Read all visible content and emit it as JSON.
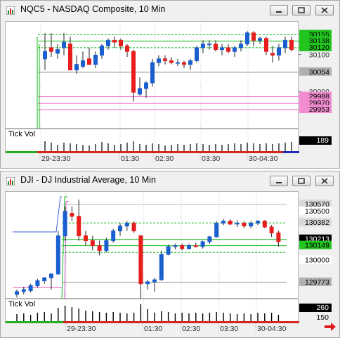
{
  "charts": [
    {
      "title": "NQC5 - NASDAQ Composite, 10 Min",
      "price_tags": [
        {
          "label": "30155",
          "price": 30155,
          "bg": "#22c41e",
          "fg": "#000000"
        },
        {
          "label": "30138",
          "price": 30138,
          "bg": "#22c41e",
          "fg": "#000000"
        },
        {
          "label": "30120",
          "price": 30120,
          "bg": "#22c41e",
          "fg": "#000000"
        },
        {
          "label": "30054",
          "price": 30054,
          "bg": "#b0b0b0",
          "fg": "#000000"
        },
        {
          "label": "29988",
          "price": 29988,
          "bg": "#f08ccf",
          "fg": "#000000"
        },
        {
          "label": "29970",
          "price": 29970,
          "bg": "#f08ccf",
          "fg": "#000000"
        },
        {
          "label": "29953",
          "price": 29953,
          "bg": "#f08ccf",
          "fg": "#000000"
        }
      ],
      "axis_labels": [
        "30100",
        "30000"
      ],
      "volume_label": "Tick Vol",
      "volume_value": "189",
      "time_labels": [
        "29-23:30",
        "01:30",
        "02:30",
        "03:30",
        "30-04:30"
      ]
    },
    {
      "title": "DJI - DJ Industrial Average, 10 Min",
      "price_tags": [
        {
          "label": "130570",
          "price": 130570,
          "bg": "#d8d8d8",
          "fg": "#000000"
        },
        {
          "label": "130500",
          "price": 130500,
          "bg": "#ffffff",
          "fg": "#000000"
        },
        {
          "label": "130382",
          "price": 130382,
          "bg": "#d8d8d8",
          "fg": "#000000"
        },
        {
          "label": "130213",
          "price": 130213,
          "bg": "#000000",
          "fg": "#ffffff"
        },
        {
          "label": "130149",
          "price": 130149,
          "bg": "#22c41e",
          "fg": "#000000"
        },
        {
          "label": "130000",
          "price": 130000,
          "bg": "#ffffff",
          "fg": "#000000"
        },
        {
          "label": "129773",
          "price": 129773,
          "bg": "#b0b0b0",
          "fg": "#000000"
        }
      ],
      "axis_labels": [],
      "volume_label": "Tick Vol",
      "volume_value": "260",
      "volume_axis": "150",
      "time_labels": [
        "29-23:30",
        "01:30",
        "02:30",
        "03:30",
        "30-04:30"
      ]
    }
  ],
  "colors": {
    "up": "#1a5fd0",
    "down": "#e81d1d",
    "green_line": "#11b81a",
    "pink_line": "#e668c4",
    "gray_line": "#8c8c8c"
  },
  "icons": [
    "chart-window-icon",
    "minimize-icon",
    "restore-icon",
    "close-icon",
    "scroll-right-arrow-icon"
  ]
}
